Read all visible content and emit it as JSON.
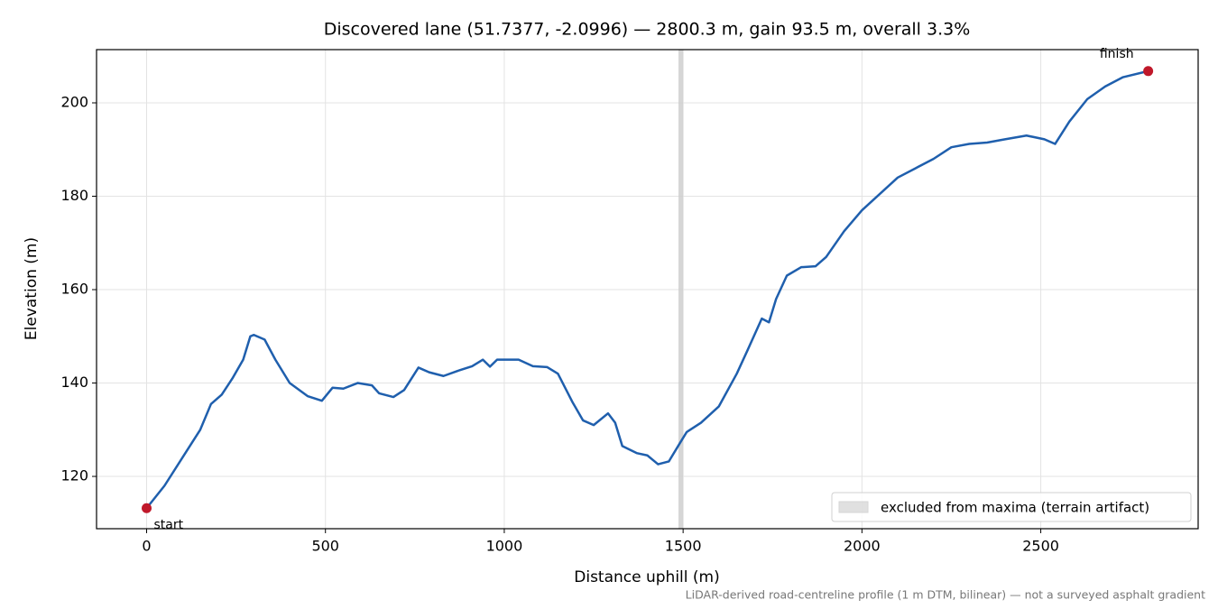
{
  "chart_data": {
    "type": "line",
    "title": "Discovered lane (51.7377, -2.0996) — 2800.3 m, gain 93.5 m, overall 3.3%",
    "x_label": "Distance uphill (m)",
    "y_label": "Elevation (m)",
    "footnote": "LiDAR-derived road-centreline profile (1 m DTM, bilinear) — not a surveyed asphalt gradient",
    "x": [
      0,
      50,
      100,
      150,
      180,
      210,
      240,
      270,
      290,
      300,
      330,
      360,
      400,
      450,
      490,
      520,
      550,
      590,
      630,
      650,
      690,
      720,
      760,
      790,
      830,
      870,
      910,
      940,
      960,
      980,
      1040,
      1080,
      1120,
      1150,
      1190,
      1220,
      1250,
      1290,
      1310,
      1330,
      1370,
      1400,
      1430,
      1460,
      1490,
      1510,
      1550,
      1600,
      1650,
      1680,
      1720,
      1740,
      1760,
      1790,
      1830,
      1870,
      1900,
      1950,
      2000,
      2050,
      2100,
      2150,
      2200,
      2250,
      2300,
      2350,
      2400,
      2460,
      2510,
      2540,
      2580,
      2630,
      2680,
      2730,
      2800.3
    ],
    "series": [
      {
        "color": "#1f5fad",
        "values": [
          113.2,
          118,
          124,
          130,
          135.5,
          137.5,
          141,
          145,
          150,
          150.3,
          149.3,
          145,
          140,
          137.2,
          136.2,
          139,
          138.8,
          140,
          139.5,
          137.8,
          137,
          138.5,
          143.3,
          142.3,
          141.5,
          142.6,
          143.6,
          145,
          143.5,
          145,
          145,
          143.6,
          143.4,
          142,
          136,
          132,
          131,
          133.5,
          131.5,
          126.5,
          125,
          124.5,
          122.6,
          123.2,
          127,
          129.5,
          131.5,
          135,
          142,
          147,
          153.8,
          153,
          158,
          163,
          164.8,
          165,
          167,
          172.5,
          177,
          180.5,
          184,
          186,
          188,
          190.5,
          191.2,
          191.5,
          192.2,
          193,
          192.2,
          191.2,
          196,
          200.8,
          203.5,
          205.5,
          206.8
        ]
      }
    ],
    "markers": [
      {
        "label": "start",
        "x": 0,
        "y": 113.2,
        "color": "#c0182a"
      },
      {
        "label": "finish",
        "x": 2800.3,
        "y": 206.8,
        "color": "#c0182a"
      }
    ],
    "excluded": {
      "label": "excluded from maxima (terrain artifact)",
      "range": [
        1487,
        1500
      ],
      "color": "#cccccc"
    },
    "xlim": [
      -140,
      2940
    ],
    "ylim": [
      108.8,
      211.4
    ],
    "xticks": [
      0,
      500,
      1000,
      1500,
      2000,
      2500
    ],
    "yticks": [
      120,
      140,
      160,
      180,
      200
    ],
    "grid": true,
    "legend_position": "lower right"
  }
}
